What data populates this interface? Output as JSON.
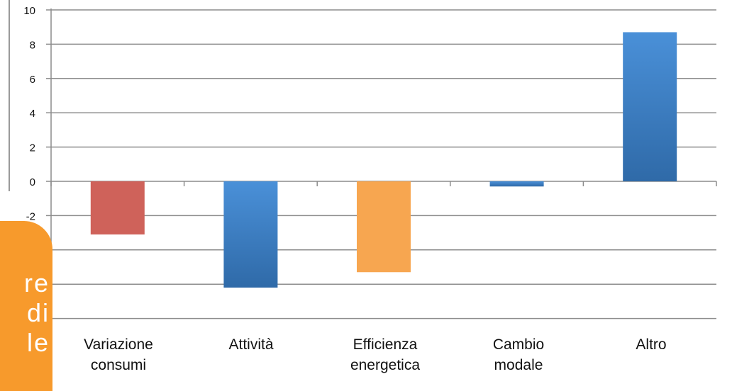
{
  "chart_data": {
    "type": "bar",
    "title": "",
    "xlabel": "",
    "ylabel": "",
    "ylim": [
      -8,
      10
    ],
    "yticks": [
      10,
      8,
      6,
      4,
      2,
      0,
      -2
    ],
    "grid": true,
    "categories": [
      [
        "Variazione",
        "consumi"
      ],
      [
        "Attività"
      ],
      [
        "Efficienza",
        "energetica"
      ],
      [
        "Cambio",
        "modale"
      ],
      [
        "Altro"
      ]
    ],
    "values": [
      -3.1,
      -6.2,
      -5.3,
      -0.3,
      8.7
    ],
    "bar_colors": [
      "#cf625a",
      "#3d7fc6",
      "#f7a650",
      "#3d7fc6",
      "#3d7fc6"
    ]
  },
  "side_panel": {
    "color": "#f79a2c",
    "lines": [
      "re",
      "di",
      "le"
    ]
  }
}
